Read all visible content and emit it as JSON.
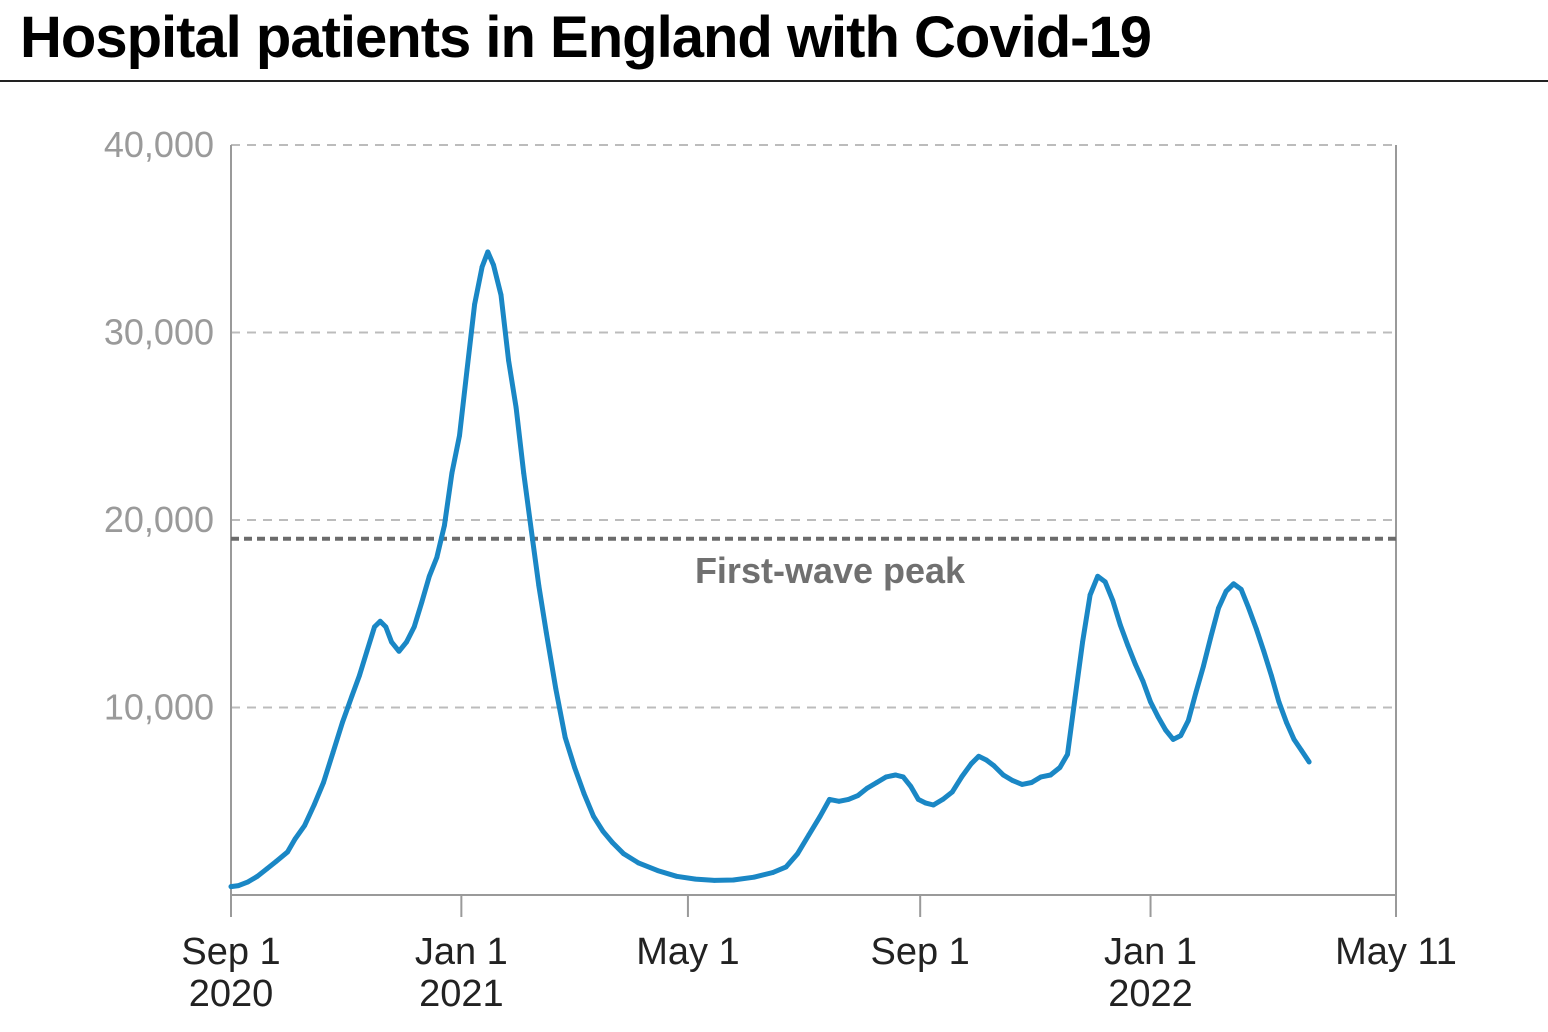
{
  "title": "Hospital patients in England with Covid-19",
  "colors": {
    "line": "#1a87c5",
    "grid": "#bcbcbc",
    "axis": "#9a9a9a",
    "reference": "#6b6b6b"
  },
  "chart_data": {
    "type": "line",
    "xlabel": "",
    "ylabel": "",
    "x_domain": [
      "2020-09-01",
      "2022-05-11"
    ],
    "ylim": [
      0,
      40000
    ],
    "y_ticks": [
      10000,
      20000,
      30000,
      40000
    ],
    "y_tick_labels": [
      "10,000",
      "20,000",
      "30,000",
      "40,000"
    ],
    "grid": {
      "horizontal": true,
      "style": "dashed"
    },
    "x_ticks": [
      {
        "date": "2020-09-01",
        "label": "Sep 1",
        "sublabel": "2020"
      },
      {
        "date": "2021-01-01",
        "label": "Jan 1",
        "sublabel": "2021"
      },
      {
        "date": "2021-05-01",
        "label": "May 1",
        "sublabel": ""
      },
      {
        "date": "2021-09-01",
        "label": "Sep 1",
        "sublabel": ""
      },
      {
        "date": "2022-01-01",
        "label": "Jan 1",
        "sublabel": "2022"
      },
      {
        "date": "2022-05-11",
        "label": "May 11",
        "sublabel": ""
      }
    ],
    "reference_line": {
      "value": 19000,
      "label": "First-wave peak"
    },
    "series": [
      {
        "name": "",
        "points": [
          [
            "2020-09-01",
            450
          ],
          [
            "2020-09-05",
            500
          ],
          [
            "2020-09-10",
            700
          ],
          [
            "2020-09-15",
            1000
          ],
          [
            "2020-09-20",
            1400
          ],
          [
            "2020-09-25",
            1800
          ],
          [
            "2020-10-01",
            2300
          ],
          [
            "2020-10-05",
            3000
          ],
          [
            "2020-10-10",
            3700
          ],
          [
            "2020-10-15",
            4800
          ],
          [
            "2020-10-20",
            6000
          ],
          [
            "2020-10-25",
            7600
          ],
          [
            "2020-10-30",
            9200
          ],
          [
            "2020-11-04",
            10600
          ],
          [
            "2020-11-08",
            11700
          ],
          [
            "2020-11-12",
            13000
          ],
          [
            "2020-11-16",
            14300
          ],
          [
            "2020-11-19",
            14600
          ],
          [
            "2020-11-22",
            14300
          ],
          [
            "2020-11-25",
            13500
          ],
          [
            "2020-11-29",
            13000
          ],
          [
            "2020-12-03",
            13500
          ],
          [
            "2020-12-07",
            14300
          ],
          [
            "2020-12-11",
            15600
          ],
          [
            "2020-12-15",
            17000
          ],
          [
            "2020-12-19",
            18000
          ],
          [
            "2020-12-23",
            19700
          ],
          [
            "2020-12-27",
            22500
          ],
          [
            "2020-12-31",
            24500
          ],
          [
            "2021-01-04",
            28000
          ],
          [
            "2021-01-08",
            31500
          ],
          [
            "2021-01-12",
            33500
          ],
          [
            "2021-01-15",
            34300
          ],
          [
            "2021-01-18",
            33600
          ],
          [
            "2021-01-22",
            32000
          ],
          [
            "2021-01-26",
            28500
          ],
          [
            "2021-01-30",
            26000
          ],
          [
            "2021-02-03",
            22500
          ],
          [
            "2021-02-07",
            19500
          ],
          [
            "2021-02-11",
            16500
          ],
          [
            "2021-02-15",
            14000
          ],
          [
            "2021-02-20",
            11000
          ],
          [
            "2021-02-25",
            8400
          ],
          [
            "2021-03-02",
            6800
          ],
          [
            "2021-03-07",
            5400
          ],
          [
            "2021-03-12",
            4200
          ],
          [
            "2021-03-17",
            3400
          ],
          [
            "2021-03-22",
            2800
          ],
          [
            "2021-03-28",
            2200
          ],
          [
            "2021-04-05",
            1700
          ],
          [
            "2021-04-15",
            1300
          ],
          [
            "2021-04-25",
            1000
          ],
          [
            "2021-05-05",
            850
          ],
          [
            "2021-05-15",
            780
          ],
          [
            "2021-05-25",
            800
          ],
          [
            "2021-06-05",
            950
          ],
          [
            "2021-06-15",
            1200
          ],
          [
            "2021-06-22",
            1500
          ],
          [
            "2021-06-28",
            2200
          ],
          [
            "2021-07-04",
            3200
          ],
          [
            "2021-07-10",
            4200
          ],
          [
            "2021-07-15",
            5100
          ],
          [
            "2021-07-20",
            5000
          ],
          [
            "2021-07-25",
            5100
          ],
          [
            "2021-07-30",
            5300
          ],
          [
            "2021-08-04",
            5700
          ],
          [
            "2021-08-09",
            6000
          ],
          [
            "2021-08-14",
            6300
          ],
          [
            "2021-08-19",
            6400
          ],
          [
            "2021-08-23",
            6300
          ],
          [
            "2021-08-27",
            5800
          ],
          [
            "2021-08-31",
            5100
          ],
          [
            "2021-09-04",
            4900
          ],
          [
            "2021-09-08",
            4800
          ],
          [
            "2021-09-13",
            5100
          ],
          [
            "2021-09-18",
            5500
          ],
          [
            "2021-09-23",
            6300
          ],
          [
            "2021-09-28",
            7000
          ],
          [
            "2021-10-02",
            7400
          ],
          [
            "2021-10-06",
            7200
          ],
          [
            "2021-10-10",
            6900
          ],
          [
            "2021-10-15",
            6400
          ],
          [
            "2021-10-20",
            6100
          ],
          [
            "2021-10-25",
            5900
          ],
          [
            "2021-10-30",
            6000
          ],
          [
            "2021-11-04",
            6300
          ],
          [
            "2021-11-09",
            6400
          ],
          [
            "2021-11-14",
            6800
          ],
          [
            "2021-11-18",
            7500
          ],
          [
            "2021-11-22",
            10500
          ],
          [
            "2021-11-26",
            13500
          ],
          [
            "2021-11-30",
            16000
          ],
          [
            "2021-12-04",
            17000
          ],
          [
            "2021-12-08",
            16700
          ],
          [
            "2021-12-12",
            15700
          ],
          [
            "2021-12-16",
            14400
          ],
          [
            "2021-12-20",
            13300
          ],
          [
            "2021-12-24",
            12300
          ],
          [
            "2021-12-28",
            11400
          ],
          [
            "2022-01-01",
            10300
          ],
          [
            "2022-01-05",
            9500
          ],
          [
            "2022-01-09",
            8800
          ],
          [
            "2022-01-13",
            8300
          ],
          [
            "2022-01-17",
            8500
          ],
          [
            "2022-01-21",
            9300
          ],
          [
            "2022-01-25",
            10800
          ],
          [
            "2022-01-29",
            12200
          ],
          [
            "2022-02-02",
            13800
          ],
          [
            "2022-02-06",
            15300
          ],
          [
            "2022-02-10",
            16200
          ],
          [
            "2022-02-14",
            16600
          ],
          [
            "2022-02-18",
            16300
          ],
          [
            "2022-02-22",
            15300
          ],
          [
            "2022-02-26",
            14200
          ],
          [
            "2022-03-02",
            13000
          ],
          [
            "2022-03-06",
            11700
          ],
          [
            "2022-03-10",
            10300
          ],
          [
            "2022-03-14",
            9200
          ],
          [
            "2022-03-18",
            8300
          ],
          [
            "2022-03-22",
            7700
          ],
          [
            "2022-03-26",
            7100
          ]
        ]
      }
    ]
  }
}
